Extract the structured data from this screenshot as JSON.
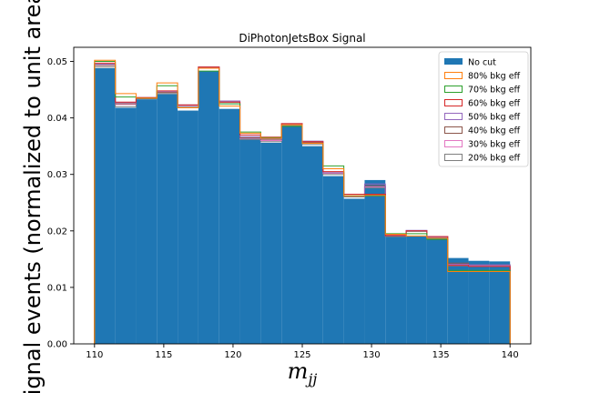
{
  "chart_data": {
    "type": "bar",
    "title": "DiPhotonJetsBox Signal",
    "xlabel": "m",
    "xlabel_sub": "jj",
    "ylabel": "Signal events (normalized to unit area)",
    "xlim": [
      108.5,
      141.5
    ],
    "ylim": [
      0,
      0.0525
    ],
    "xticks": [
      110,
      115,
      120,
      125,
      130,
      135,
      140
    ],
    "yticks": [
      0.0,
      0.01,
      0.02,
      0.03,
      0.04,
      0.05
    ],
    "ytick_labels": [
      "0.00",
      "0.01",
      "0.02",
      "0.03",
      "0.04",
      "0.05"
    ],
    "bin_edges": [
      110,
      111.5,
      113,
      114.5,
      116,
      117.5,
      119,
      120.5,
      122,
      123.5,
      125,
      126.5,
      128,
      129.5,
      131,
      132.5,
      134,
      135.5,
      137,
      138.5,
      140
    ],
    "legend_position": "upper right",
    "series": [
      {
        "name": "No cut",
        "style": "filled",
        "color": "#1f77b4",
        "values": [
          0.0488,
          0.0418,
          0.0433,
          0.0442,
          0.0413,
          0.0483,
          0.0416,
          0.0363,
          0.0356,
          0.0385,
          0.035,
          0.0297,
          0.0257,
          0.029,
          0.019,
          0.019,
          0.0188,
          0.0152,
          0.0147,
          0.0146
        ]
      },
      {
        "name": "80% bkg eff",
        "style": "step",
        "color": "#ff7f0e",
        "values": [
          0.0502,
          0.0443,
          0.0435,
          0.0462,
          0.0418,
          0.0488,
          0.0421,
          0.0373,
          0.0364,
          0.0388,
          0.0355,
          0.031,
          0.0262,
          0.0263,
          0.0194,
          0.0191,
          0.0187,
          0.0128,
          0.0128,
          0.0128
        ]
      },
      {
        "name": "70% bkg eff",
        "style": "step",
        "color": "#2ca02c",
        "values": [
          0.05,
          0.0437,
          0.0435,
          0.0457,
          0.0418,
          0.0483,
          0.0425,
          0.0375,
          0.0365,
          0.0385,
          0.0355,
          0.0315,
          0.0262,
          0.0262,
          0.0195,
          0.0195,
          0.0185,
          0.013,
          0.013,
          0.013
        ]
      },
      {
        "name": "60% bkg eff",
        "style": "step",
        "color": "#d62728",
        "values": [
          0.0497,
          0.0428,
          0.0436,
          0.0448,
          0.0423,
          0.049,
          0.0428,
          0.037,
          0.0366,
          0.039,
          0.0358,
          0.0305,
          0.0265,
          0.0265,
          0.0192,
          0.02,
          0.019,
          0.0139,
          0.0137,
          0.0137
        ]
      },
      {
        "name": "50% bkg eff",
        "style": "step",
        "color": "#9467bd",
        "values": [
          0.0495,
          0.0427,
          0.0436,
          0.0447,
          0.0423,
          0.049,
          0.043,
          0.0367,
          0.0363,
          0.039,
          0.0359,
          0.0303,
          0.0262,
          0.0283,
          0.0192,
          0.0201,
          0.0189,
          0.0141,
          0.014,
          0.014
        ]
      },
      {
        "name": "40% bkg eff",
        "style": "step",
        "color": "#8c564b",
        "values": [
          0.0493,
          0.0425,
          0.0435,
          0.0445,
          0.0423,
          0.049,
          0.0428,
          0.0365,
          0.0362,
          0.0388,
          0.0357,
          0.0303,
          0.0262,
          0.028,
          0.0191,
          0.02,
          0.019,
          0.0143,
          0.014,
          0.014
        ]
      },
      {
        "name": "30% bkg eff",
        "style": "step",
        "color": "#e377c2",
        "values": [
          0.0493,
          0.0424,
          0.0435,
          0.0445,
          0.0422,
          0.049,
          0.0428,
          0.0364,
          0.036,
          0.0388,
          0.0357,
          0.0302,
          0.0262,
          0.0278,
          0.0191,
          0.02,
          0.019,
          0.014,
          0.0138,
          0.0138
        ]
      },
      {
        "name": "20% bkg eff",
        "style": "step",
        "color": "#7f7f7f",
        "values": [
          0.049,
          0.042,
          0.0434,
          0.0443,
          0.042,
          0.0488,
          0.0425,
          0.0362,
          0.0358,
          0.0386,
          0.0353,
          0.03,
          0.026,
          0.0276,
          0.019,
          0.0199,
          0.0189,
          0.0138,
          0.0137,
          0.0137
        ]
      }
    ]
  }
}
